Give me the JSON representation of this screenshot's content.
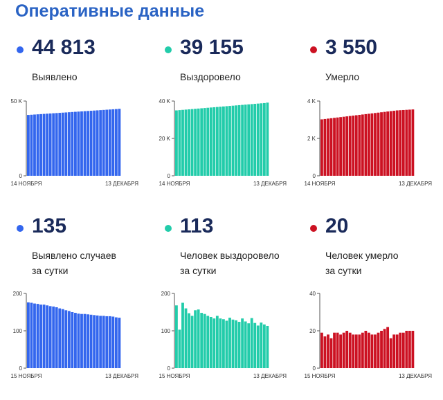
{
  "title": "Оперативные данные",
  "panels": [
    {
      "id": "detected",
      "value": "44 813",
      "caption": [
        "Выявлено"
      ],
      "color": "#3366ee"
    },
    {
      "id": "recovered",
      "value": "39 155",
      "caption": [
        "Выздоровело"
      ],
      "color": "#22ccaa"
    },
    {
      "id": "deaths",
      "value": "3 550",
      "caption": [
        "Умерло"
      ],
      "color": "#cc1122"
    },
    {
      "id": "detected-daily",
      "value": "135",
      "caption": [
        "Выявлено случаев",
        "за сутки"
      ],
      "color": "#3366ee"
    },
    {
      "id": "recovered-daily",
      "value": "113",
      "caption": [
        "Человек выздоровело",
        "за сутки"
      ],
      "color": "#22ccaa"
    },
    {
      "id": "deaths-daily",
      "value": "20",
      "caption": [
        "Человек умерло",
        "за сутки"
      ],
      "color": "#cc1122"
    }
  ],
  "chart_data": [
    {
      "type": "bar",
      "series_label": "Выявлено",
      "x_start_label": "14 НОЯБРЯ",
      "x_end_label": "13 ДЕКАБРЯ",
      "ylim": [
        0,
        50000
      ],
      "yticks": [
        0,
        50000
      ],
      "ytick_labels": [
        "0",
        "50 K"
      ],
      "grid": false,
      "color": "#3366ee",
      "values": [
        40700,
        40840,
        40980,
        41120,
        41260,
        41400,
        41540,
        41680,
        41820,
        41960,
        42100,
        42240,
        42380,
        42520,
        42660,
        42800,
        42940,
        43080,
        43220,
        43360,
        43500,
        43640,
        43780,
        43920,
        44060,
        44200,
        44340,
        44480,
        44620,
        44813
      ]
    },
    {
      "type": "bar",
      "series_label": "Выздоровело",
      "x_start_label": "14 НОЯБРЯ",
      "x_end_label": "13 ДЕКАБРЯ",
      "ylim": [
        0,
        40000
      ],
      "yticks": [
        0,
        20000,
        40000
      ],
      "ytick_labels": [
        "0",
        "20 K",
        "40 K"
      ],
      "grid": false,
      "color": "#22ccaa",
      "values": [
        35000,
        35140,
        35280,
        35420,
        35560,
        35700,
        35840,
        35980,
        36120,
        36260,
        36400,
        36540,
        36680,
        36820,
        36960,
        37100,
        37240,
        37380,
        37520,
        37660,
        37800,
        37940,
        38080,
        38220,
        38360,
        38500,
        38640,
        38780,
        38920,
        39155
      ]
    },
    {
      "type": "bar",
      "series_label": "Умерло",
      "x_start_label": "14 НОЯБРЯ",
      "x_end_label": "13 ДЕКАБРЯ",
      "ylim": [
        0,
        4000
      ],
      "yticks": [
        0,
        2000,
        4000
      ],
      "ytick_labels": [
        "0",
        "2 K",
        "4 K"
      ],
      "grid": false,
      "color": "#cc1122",
      "values": [
        3020,
        3040,
        3060,
        3080,
        3100,
        3120,
        3140,
        3160,
        3180,
        3200,
        3220,
        3240,
        3260,
        3280,
        3300,
        3320,
        3340,
        3360,
        3380,
        3400,
        3420,
        3440,
        3460,
        3480,
        3500,
        3510,
        3520,
        3530,
        3540,
        3550
      ]
    },
    {
      "type": "bar",
      "series_label": "Выявлено случаев за сутки",
      "x_start_label": "15 НОЯБРЯ",
      "x_end_label": "13 ДЕКАБРЯ",
      "ylim": [
        0,
        200
      ],
      "yticks": [
        0,
        100,
        200
      ],
      "ytick_labels": [
        "0",
        "100",
        "200"
      ],
      "grid": false,
      "color": "#3366ee",
      "values": [
        176,
        175,
        173,
        172,
        170,
        170,
        168,
        166,
        165,
        163,
        160,
        158,
        155,
        153,
        150,
        148,
        146,
        145,
        145,
        144,
        143,
        142,
        141,
        140,
        140,
        139,
        139,
        138,
        136,
        135
      ]
    },
    {
      "type": "bar",
      "series_label": "Человек выздоровело за сутки",
      "x_start_label": "15 НОЯБРЯ",
      "x_end_label": "13 ДЕКАБРЯ",
      "ylim": [
        0,
        200
      ],
      "yticks": [
        0,
        100,
        200
      ],
      "ytick_labels": [
        "0",
        "100",
        "200"
      ],
      "grid": false,
      "color": "#22ccaa",
      "values": [
        168,
        103,
        175,
        160,
        147,
        140,
        155,
        157,
        148,
        145,
        140,
        137,
        133,
        140,
        133,
        131,
        127,
        135,
        130,
        128,
        124,
        133,
        125,
        120,
        134,
        121,
        114,
        122,
        117,
        113
      ]
    },
    {
      "type": "bar",
      "series_label": "Человек умерло за сутки",
      "x_start_label": "15 НОЯБРЯ",
      "x_end_label": "13 ДЕКАБРЯ",
      "ylim": [
        0,
        40
      ],
      "yticks": [
        0,
        20,
        40
      ],
      "ytick_labels": [
        "0",
        "20",
        "40"
      ],
      "grid": false,
      "color": "#cc1122",
      "values": [
        19,
        17,
        18,
        16,
        19,
        19,
        18,
        19,
        20,
        19,
        18,
        18,
        18,
        19,
        20,
        19,
        18,
        18,
        19,
        20,
        21,
        22,
        16,
        18,
        18,
        19,
        19,
        20,
        20,
        20
      ]
    }
  ]
}
